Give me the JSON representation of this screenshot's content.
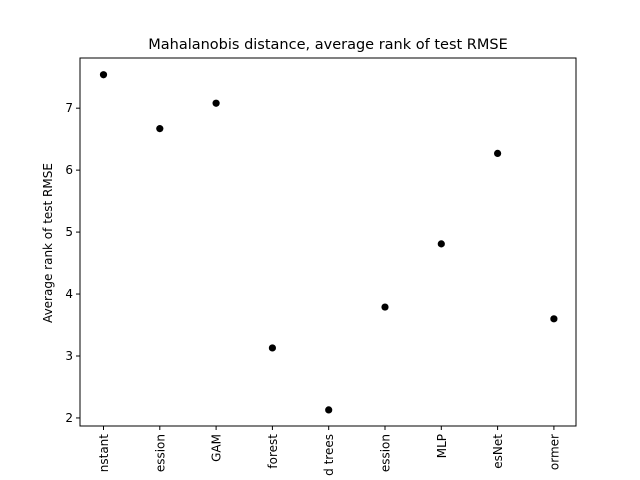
{
  "chart_data": {
    "type": "scatter",
    "title": "Mahalanobis distance, average rank of test RMSE",
    "xlabel": "",
    "ylabel": "Average rank of test RMSE",
    "categories": [
      "nstant",
      "ession",
      "GAM",
      "forest",
      "d trees",
      "ession",
      "MLP",
      "esNet",
      "ormer"
    ],
    "values": [
      7.54,
      6.67,
      7.08,
      3.13,
      2.13,
      3.79,
      4.81,
      6.27,
      3.6
    ],
    "ylim": [
      1.87,
      7.81
    ],
    "yticks": [
      2,
      3,
      4,
      5,
      6,
      7
    ],
    "grid": false,
    "legend": "none",
    "marker_color": "#000000"
  }
}
